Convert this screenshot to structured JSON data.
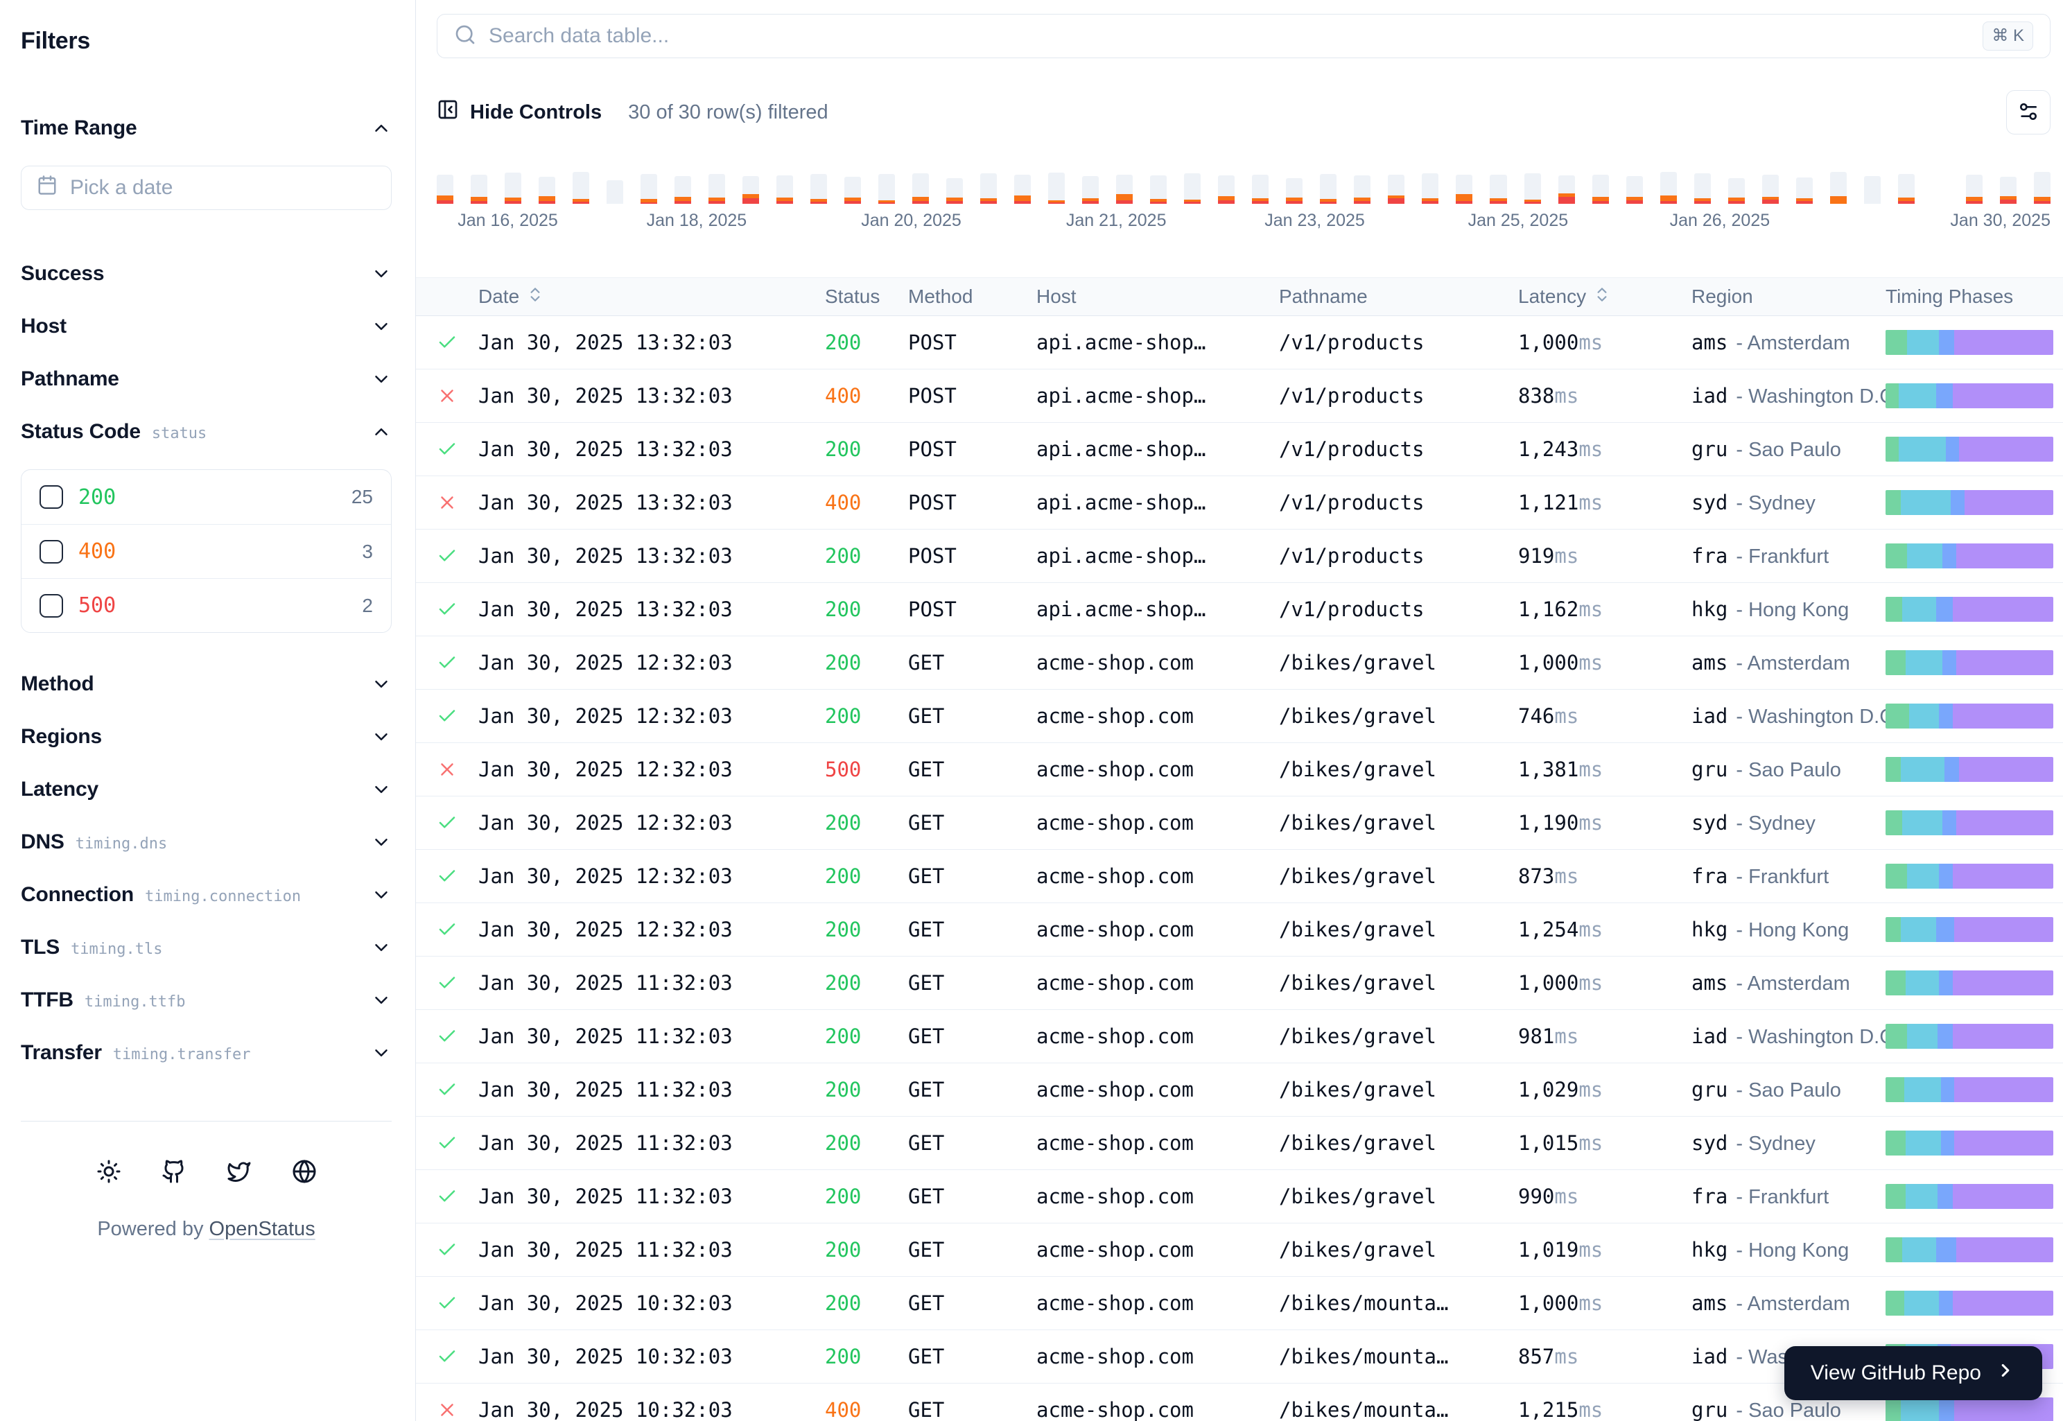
{
  "sidebar": {
    "title": "Filters",
    "date_placeholder": "Pick a date",
    "sections": [
      {
        "id": "time-range",
        "label": "Time Range",
        "badge": "",
        "expanded": true,
        "type": "date"
      },
      {
        "id": "success",
        "label": "Success",
        "badge": "",
        "expanded": false
      },
      {
        "id": "host",
        "label": "Host",
        "badge": "",
        "expanded": false
      },
      {
        "id": "pathname",
        "label": "Pathname",
        "badge": "",
        "expanded": false
      },
      {
        "id": "status-code",
        "label": "Status Code",
        "badge": "status",
        "expanded": true,
        "type": "checkboxes"
      },
      {
        "id": "method",
        "label": "Method",
        "badge": "",
        "expanded": false
      },
      {
        "id": "regions",
        "label": "Regions",
        "badge": "",
        "expanded": false
      },
      {
        "id": "latency",
        "label": "Latency",
        "badge": "",
        "expanded": false
      },
      {
        "id": "dns",
        "label": "DNS",
        "badge": "timing.dns",
        "expanded": false
      },
      {
        "id": "connection",
        "label": "Connection",
        "badge": "timing.connection",
        "expanded": false
      },
      {
        "id": "tls",
        "label": "TLS",
        "badge": "timing.tls",
        "expanded": false
      },
      {
        "id": "ttfb",
        "label": "TTFB",
        "badge": "timing.ttfb",
        "expanded": false
      },
      {
        "id": "transfer",
        "label": "Transfer",
        "badge": "timing.transfer",
        "expanded": false
      }
    ],
    "status_options": [
      {
        "code": "200",
        "count": "25"
      },
      {
        "code": "400",
        "count": "3"
      },
      {
        "code": "500",
        "count": "2"
      }
    ],
    "footer": {
      "powered_by": "Powered by",
      "brand": "OpenStatus"
    }
  },
  "toolbar": {
    "search_placeholder": "Search data table...",
    "kbd": "⌘ K",
    "hide_controls": "Hide Controls",
    "rows_filtered": "30 of 30 row(s) filtered"
  },
  "timeline": {
    "labels": [
      "Jan 16, 2025",
      "Jan 18, 2025",
      "Jan 20, 2025",
      "Jan 21, 2025",
      "Jan 23, 2025",
      "Jan 25, 2025",
      "Jan 26, 2025",
      "Jan 30, 2025"
    ],
    "bars": [
      [
        30,
        7,
        5
      ],
      [
        32,
        6,
        4
      ],
      [
        36,
        5,
        4
      ],
      [
        28,
        7,
        4
      ],
      [
        40,
        4,
        3
      ],
      [
        34,
        0,
        0
      ],
      [
        36,
        5,
        2
      ],
      [
        30,
        6,
        4
      ],
      [
        34,
        5,
        4
      ],
      [
        26,
        6,
        8
      ],
      [
        32,
        5,
        4
      ],
      [
        36,
        4,
        3
      ],
      [
        30,
        5,
        4
      ],
      [
        38,
        3,
        2
      ],
      [
        34,
        6,
        4
      ],
      [
        28,
        5,
        4
      ],
      [
        36,
        4,
        4
      ],
      [
        30,
        8,
        4
      ],
      [
        40,
        3,
        2
      ],
      [
        32,
        4,
        4
      ],
      [
        28,
        9,
        5
      ],
      [
        34,
        4,
        3
      ],
      [
        38,
        3,
        3
      ],
      [
        30,
        6,
        5
      ],
      [
        34,
        4,
        4
      ],
      [
        28,
        5,
        4
      ],
      [
        36,
        4,
        3
      ],
      [
        32,
        5,
        4
      ],
      [
        30,
        4,
        8
      ],
      [
        36,
        4,
        4
      ],
      [
        28,
        10,
        4
      ],
      [
        34,
        4,
        4
      ],
      [
        38,
        3,
        3
      ],
      [
        26,
        5,
        10
      ],
      [
        32,
        6,
        4
      ],
      [
        30,
        5,
        5
      ],
      [
        34,
        8,
        4
      ],
      [
        36,
        4,
        4
      ],
      [
        28,
        5,
        4
      ],
      [
        32,
        4,
        6
      ],
      [
        30,
        4,
        4
      ],
      [
        36,
        12,
        0
      ],
      [
        40,
        0,
        0
      ],
      [
        34,
        5,
        4
      ],
      [
        0,
        0,
        0
      ],
      [
        32,
        6,
        4
      ],
      [
        28,
        5,
        6
      ],
      [
        36,
        6,
        4
      ]
    ]
  },
  "table": {
    "columns": [
      {
        "label": "Date",
        "sortable": true
      },
      {
        "label": "Status",
        "sortable": false
      },
      {
        "label": "Method",
        "sortable": false
      },
      {
        "label": "Host",
        "sortable": false
      },
      {
        "label": "Pathname",
        "sortable": false
      },
      {
        "label": "Latency",
        "sortable": true
      },
      {
        "label": "Region",
        "sortable": false
      },
      {
        "label": "Timing Phases",
        "sortable": false
      }
    ],
    "latency_unit": "ms",
    "region_separator": "-",
    "rows": [
      {
        "ok": true,
        "date": "Jan 30, 2025 13:32:03",
        "status": "200",
        "method": "POST",
        "host": "api.acme-shop…",
        "pathname": "/v1/products",
        "latency": "1,000",
        "region_code": "ams",
        "region_city": "Amsterdam",
        "timing": [
          13,
          19,
          9,
          59
        ]
      },
      {
        "ok": false,
        "date": "Jan 30, 2025 13:32:03",
        "status": "400",
        "method": "POST",
        "host": "api.acme-shop…",
        "pathname": "/v1/products",
        "latency": "838",
        "region_code": "iad",
        "region_city": "Washington D.C.",
        "timing": [
          8,
          22,
          10,
          60
        ]
      },
      {
        "ok": true,
        "date": "Jan 30, 2025 13:32:03",
        "status": "200",
        "method": "POST",
        "host": "api.acme-shop…",
        "pathname": "/v1/products",
        "latency": "1,243",
        "region_code": "gru",
        "region_city": "Sao Paulo",
        "timing": [
          8,
          28,
          8,
          56
        ]
      },
      {
        "ok": false,
        "date": "Jan 30, 2025 13:32:03",
        "status": "400",
        "method": "POST",
        "host": "api.acme-shop…",
        "pathname": "/v1/products",
        "latency": "1,121",
        "region_code": "syd",
        "region_city": "Sydney",
        "timing": [
          9,
          30,
          8,
          53
        ]
      },
      {
        "ok": true,
        "date": "Jan 30, 2025 13:32:03",
        "status": "200",
        "method": "POST",
        "host": "api.acme-shop…",
        "pathname": "/v1/products",
        "latency": "919",
        "region_code": "fra",
        "region_city": "Frankfurt",
        "timing": [
          13,
          21,
          8,
          58
        ]
      },
      {
        "ok": true,
        "date": "Jan 30, 2025 13:32:03",
        "status": "200",
        "method": "POST",
        "host": "api.acme-shop…",
        "pathname": "/v1/products",
        "latency": "1,162",
        "region_code": "hkg",
        "region_city": "Hong Kong",
        "timing": [
          10,
          20,
          10,
          60
        ]
      },
      {
        "ok": true,
        "date": "Jan 30, 2025 12:32:03",
        "status": "200",
        "method": "GET",
        "host": "acme-shop.com",
        "pathname": "/bikes/gravel",
        "latency": "1,000",
        "region_code": "ams",
        "region_city": "Amsterdam",
        "timing": [
          12,
          22,
          8,
          58
        ]
      },
      {
        "ok": true,
        "date": "Jan 30, 2025 12:32:03",
        "status": "200",
        "method": "GET",
        "host": "acme-shop.com",
        "pathname": "/bikes/gravel",
        "latency": "746",
        "region_code": "iad",
        "region_city": "Washington D.C.",
        "timing": [
          14,
          18,
          8,
          60
        ]
      },
      {
        "ok": false,
        "date": "Jan 30, 2025 12:32:03",
        "status": "500",
        "method": "GET",
        "host": "acme-shop.com",
        "pathname": "/bikes/gravel",
        "latency": "1,381",
        "region_code": "gru",
        "region_city": "Sao Paulo",
        "timing": [
          9,
          26,
          9,
          56
        ]
      },
      {
        "ok": true,
        "date": "Jan 30, 2025 12:32:03",
        "status": "200",
        "method": "GET",
        "host": "acme-shop.com",
        "pathname": "/bikes/gravel",
        "latency": "1,190",
        "region_code": "syd",
        "region_city": "Sydney",
        "timing": [
          10,
          24,
          8,
          58
        ]
      },
      {
        "ok": true,
        "date": "Jan 30, 2025 12:32:03",
        "status": "200",
        "method": "GET",
        "host": "acme-shop.com",
        "pathname": "/bikes/gravel",
        "latency": "873",
        "region_code": "fra",
        "region_city": "Frankfurt",
        "timing": [
          13,
          19,
          8,
          60
        ]
      },
      {
        "ok": true,
        "date": "Jan 30, 2025 12:32:03",
        "status": "200",
        "method": "GET",
        "host": "acme-shop.com",
        "pathname": "/bikes/gravel",
        "latency": "1,254",
        "region_code": "hkg",
        "region_city": "Hong Kong",
        "timing": [
          9,
          21,
          11,
          59
        ]
      },
      {
        "ok": true,
        "date": "Jan 30, 2025 11:32:03",
        "status": "200",
        "method": "GET",
        "host": "acme-shop.com",
        "pathname": "/bikes/gravel",
        "latency": "1,000",
        "region_code": "ams",
        "region_city": "Amsterdam",
        "timing": [
          12,
          20,
          8,
          60
        ]
      },
      {
        "ok": true,
        "date": "Jan 30, 2025 11:32:03",
        "status": "200",
        "method": "GET",
        "host": "acme-shop.com",
        "pathname": "/bikes/gravel",
        "latency": "981",
        "region_code": "iad",
        "region_city": "Washington D.C.",
        "timing": [
          13,
          18,
          9,
          60
        ]
      },
      {
        "ok": true,
        "date": "Jan 30, 2025 11:32:03",
        "status": "200",
        "method": "GET",
        "host": "acme-shop.com",
        "pathname": "/bikes/gravel",
        "latency": "1,029",
        "region_code": "gru",
        "region_city": "Sao Paulo",
        "timing": [
          11,
          22,
          8,
          59
        ]
      },
      {
        "ok": true,
        "date": "Jan 30, 2025 11:32:03",
        "status": "200",
        "method": "GET",
        "host": "acme-shop.com",
        "pathname": "/bikes/gravel",
        "latency": "1,015",
        "region_code": "syd",
        "region_city": "Sydney",
        "timing": [
          12,
          21,
          8,
          59
        ]
      },
      {
        "ok": true,
        "date": "Jan 30, 2025 11:32:03",
        "status": "200",
        "method": "GET",
        "host": "acme-shop.com",
        "pathname": "/bikes/gravel",
        "latency": "990",
        "region_code": "fra",
        "region_city": "Frankfurt",
        "timing": [
          12,
          19,
          9,
          60
        ]
      },
      {
        "ok": true,
        "date": "Jan 30, 2025 11:32:03",
        "status": "200",
        "method": "GET",
        "host": "acme-shop.com",
        "pathname": "/bikes/gravel",
        "latency": "1,019",
        "region_code": "hkg",
        "region_city": "Hong Kong",
        "timing": [
          10,
          20,
          12,
          58
        ]
      },
      {
        "ok": true,
        "date": "Jan 30, 2025 10:32:03",
        "status": "200",
        "method": "GET",
        "host": "acme-shop.com",
        "pathname": "/bikes/mounta…",
        "latency": "1,000",
        "region_code": "ams",
        "region_city": "Amsterdam",
        "timing": [
          11,
          21,
          8,
          60
        ]
      },
      {
        "ok": true,
        "date": "Jan 30, 2025 10:32:03",
        "status": "200",
        "method": "GET",
        "host": "acme-shop.com",
        "pathname": "/bikes/mounta…",
        "latency": "857",
        "region_code": "iad",
        "region_city": "Washington D.C.",
        "timing": [
          12,
          19,
          8,
          61
        ]
      },
      {
        "ok": false,
        "date": "Jan 30, 2025 10:32:03",
        "status": "400",
        "method": "GET",
        "host": "acme-shop.com",
        "pathname": "/bikes/mounta…",
        "latency": "1,215",
        "region_code": "gru",
        "region_city": "Sao Paulo",
        "timing": [
          9,
          23,
          9,
          59
        ]
      }
    ]
  },
  "github": {
    "label": "View GitHub Repo"
  },
  "colors": {
    "status": {
      "200": "#22c55e",
      "400": "#f97316",
      "500": "#ef4444"
    },
    "check": "#4ade80",
    "cross": "#f87171",
    "timing": [
      "#74d4a2",
      "#6ecde4",
      "#79a7fc",
      "#b18ff9"
    ],
    "timeline": {
      "success": "#eef2f7",
      "error4xx": "#f97316",
      "error5xx": "#ef4444"
    },
    "accent_dark": "#0f172a"
  }
}
